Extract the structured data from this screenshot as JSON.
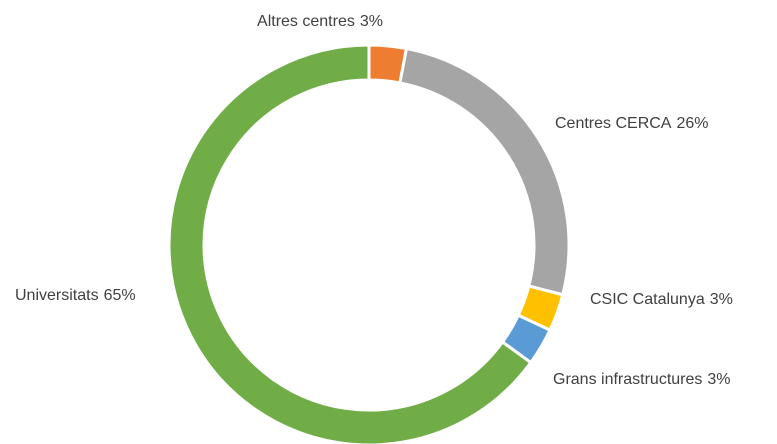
{
  "chart_data": {
    "type": "donut",
    "categories": [
      "Altres centres",
      "Centres CERCA",
      "CSIC Catalunya",
      "Grans infrastructures",
      "Universitats"
    ],
    "values": [
      3,
      26,
      3,
      3,
      65
    ],
    "value_labels": [
      "3%",
      "26%",
      "3%",
      "3%",
      "65%"
    ],
    "colors": [
      "#ed7d31",
      "#a5a5a5",
      "#ffc000",
      "#5b9bd5",
      "#70ad47"
    ]
  }
}
